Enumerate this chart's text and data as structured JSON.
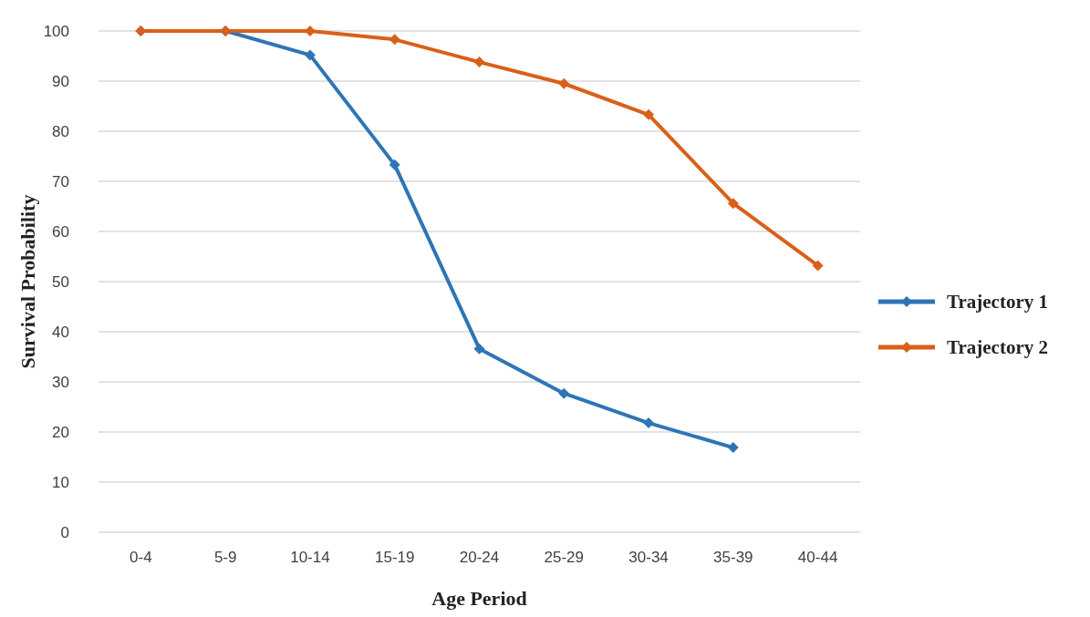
{
  "chart_data": {
    "type": "line",
    "xlabel": "Age Period",
    "ylabel": "Survival Probability",
    "categories": [
      "0-4",
      "5-9",
      "10-14",
      "15-19",
      "20-24",
      "25-29",
      "30-34",
      "35-39",
      "40-44"
    ],
    "series": [
      {
        "name": "Trajectory 1",
        "color": "#2e75b6",
        "values": [
          100,
          100,
          95.2,
          73.3,
          36.6,
          27.7,
          21.8,
          16.9,
          null
        ]
      },
      {
        "name": "Trajectory 2",
        "color": "#d9601a",
        "values": [
          100,
          100,
          100,
          98.3,
          93.8,
          89.5,
          83.3,
          65.6,
          53.2
        ]
      }
    ],
    "ylim": [
      0,
      100
    ],
    "yticks": [
      0,
      10,
      20,
      30,
      40,
      50,
      60,
      70,
      80,
      90,
      100
    ],
    "grid": "y",
    "legend": "right",
    "marker": "diamond",
    "line_style": "solid"
  }
}
